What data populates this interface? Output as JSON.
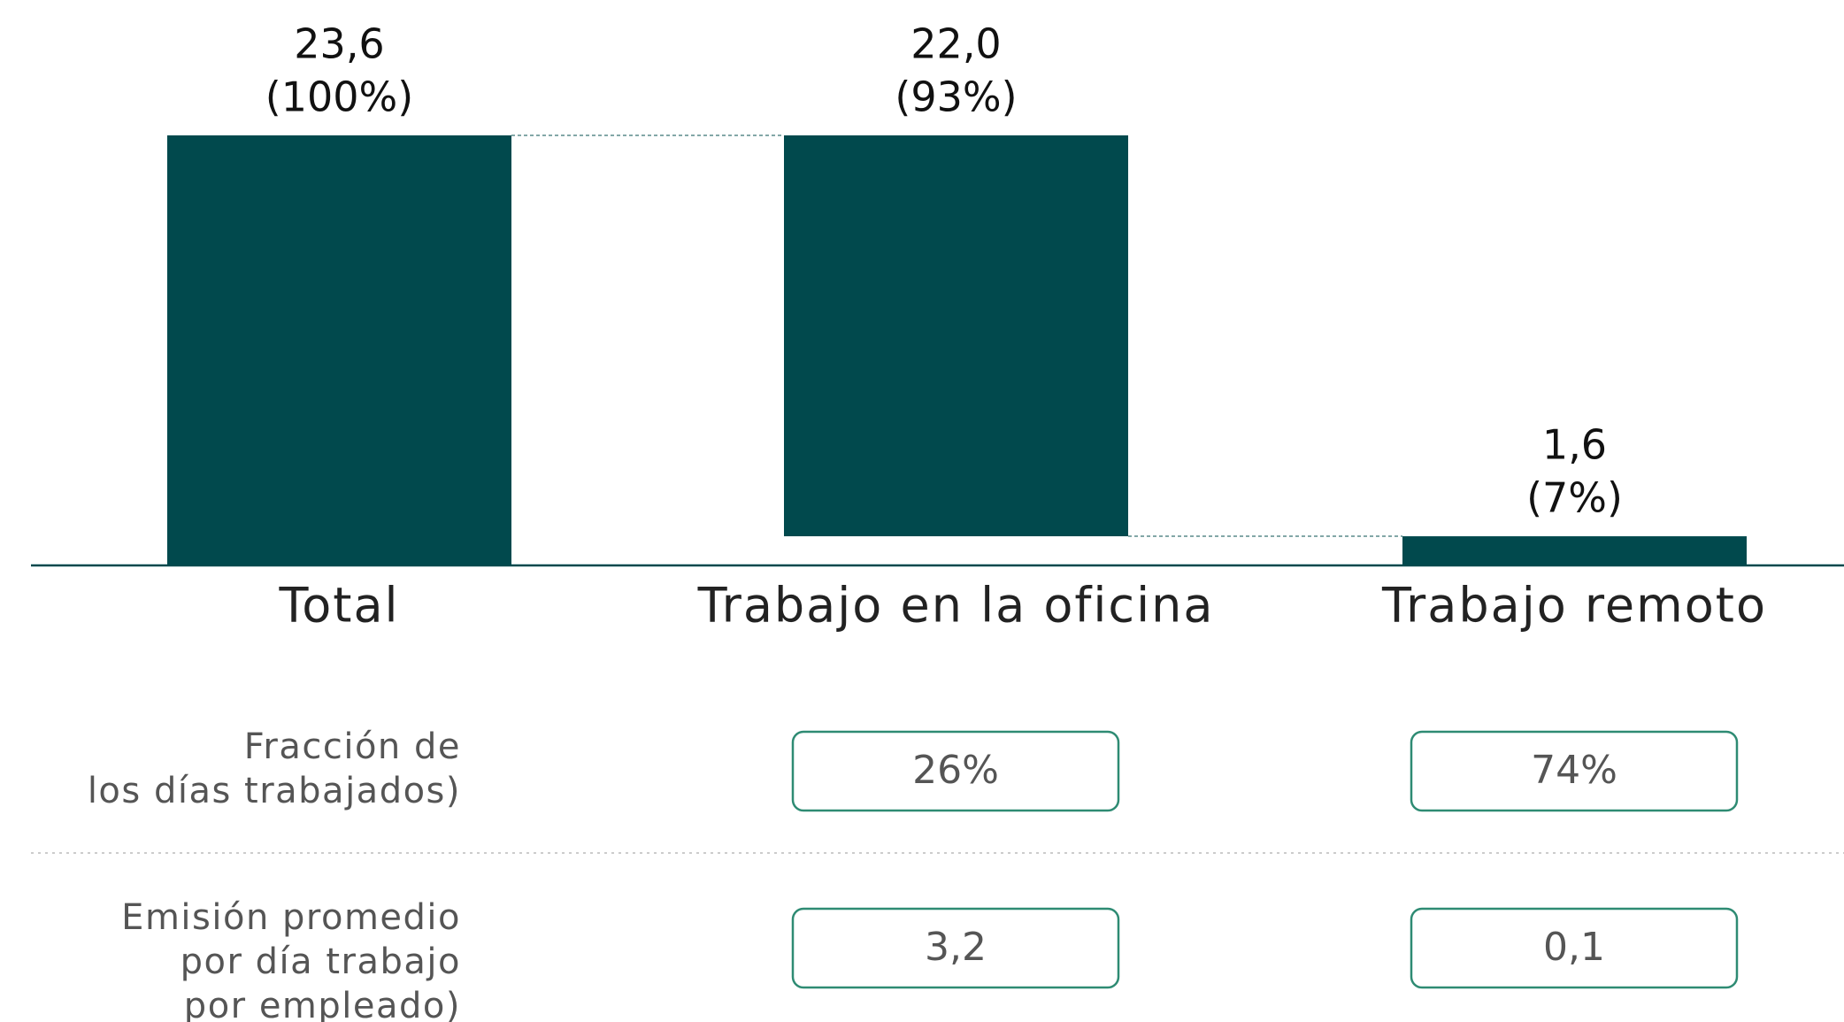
{
  "chart_data": {
    "type": "waterfall",
    "categories": [
      "Total",
      "Trabajo en la oficina",
      "Trabajo remoto"
    ],
    "measure": [
      "total",
      "relative",
      "relative"
    ],
    "values": [
      23.6,
      22.0,
      1.6
    ],
    "value_labels": [
      "23,6",
      "22,0",
      "1,6"
    ],
    "share_labels": [
      "(100%)",
      "(93%)",
      "(7%)"
    ],
    "color": "#01494d",
    "ylim": [
      0,
      23.6
    ]
  },
  "table": {
    "rows": [
      {
        "label": [
          "Fracción de",
          "los días trabajados)"
        ],
        "cells": [
          "26%",
          "74%"
        ]
      },
      {
        "label": [
          "Emisión promedio",
          "por día trabajo",
          "por empleado)"
        ],
        "cells": [
          "3,2",
          "0,1"
        ]
      }
    ]
  }
}
